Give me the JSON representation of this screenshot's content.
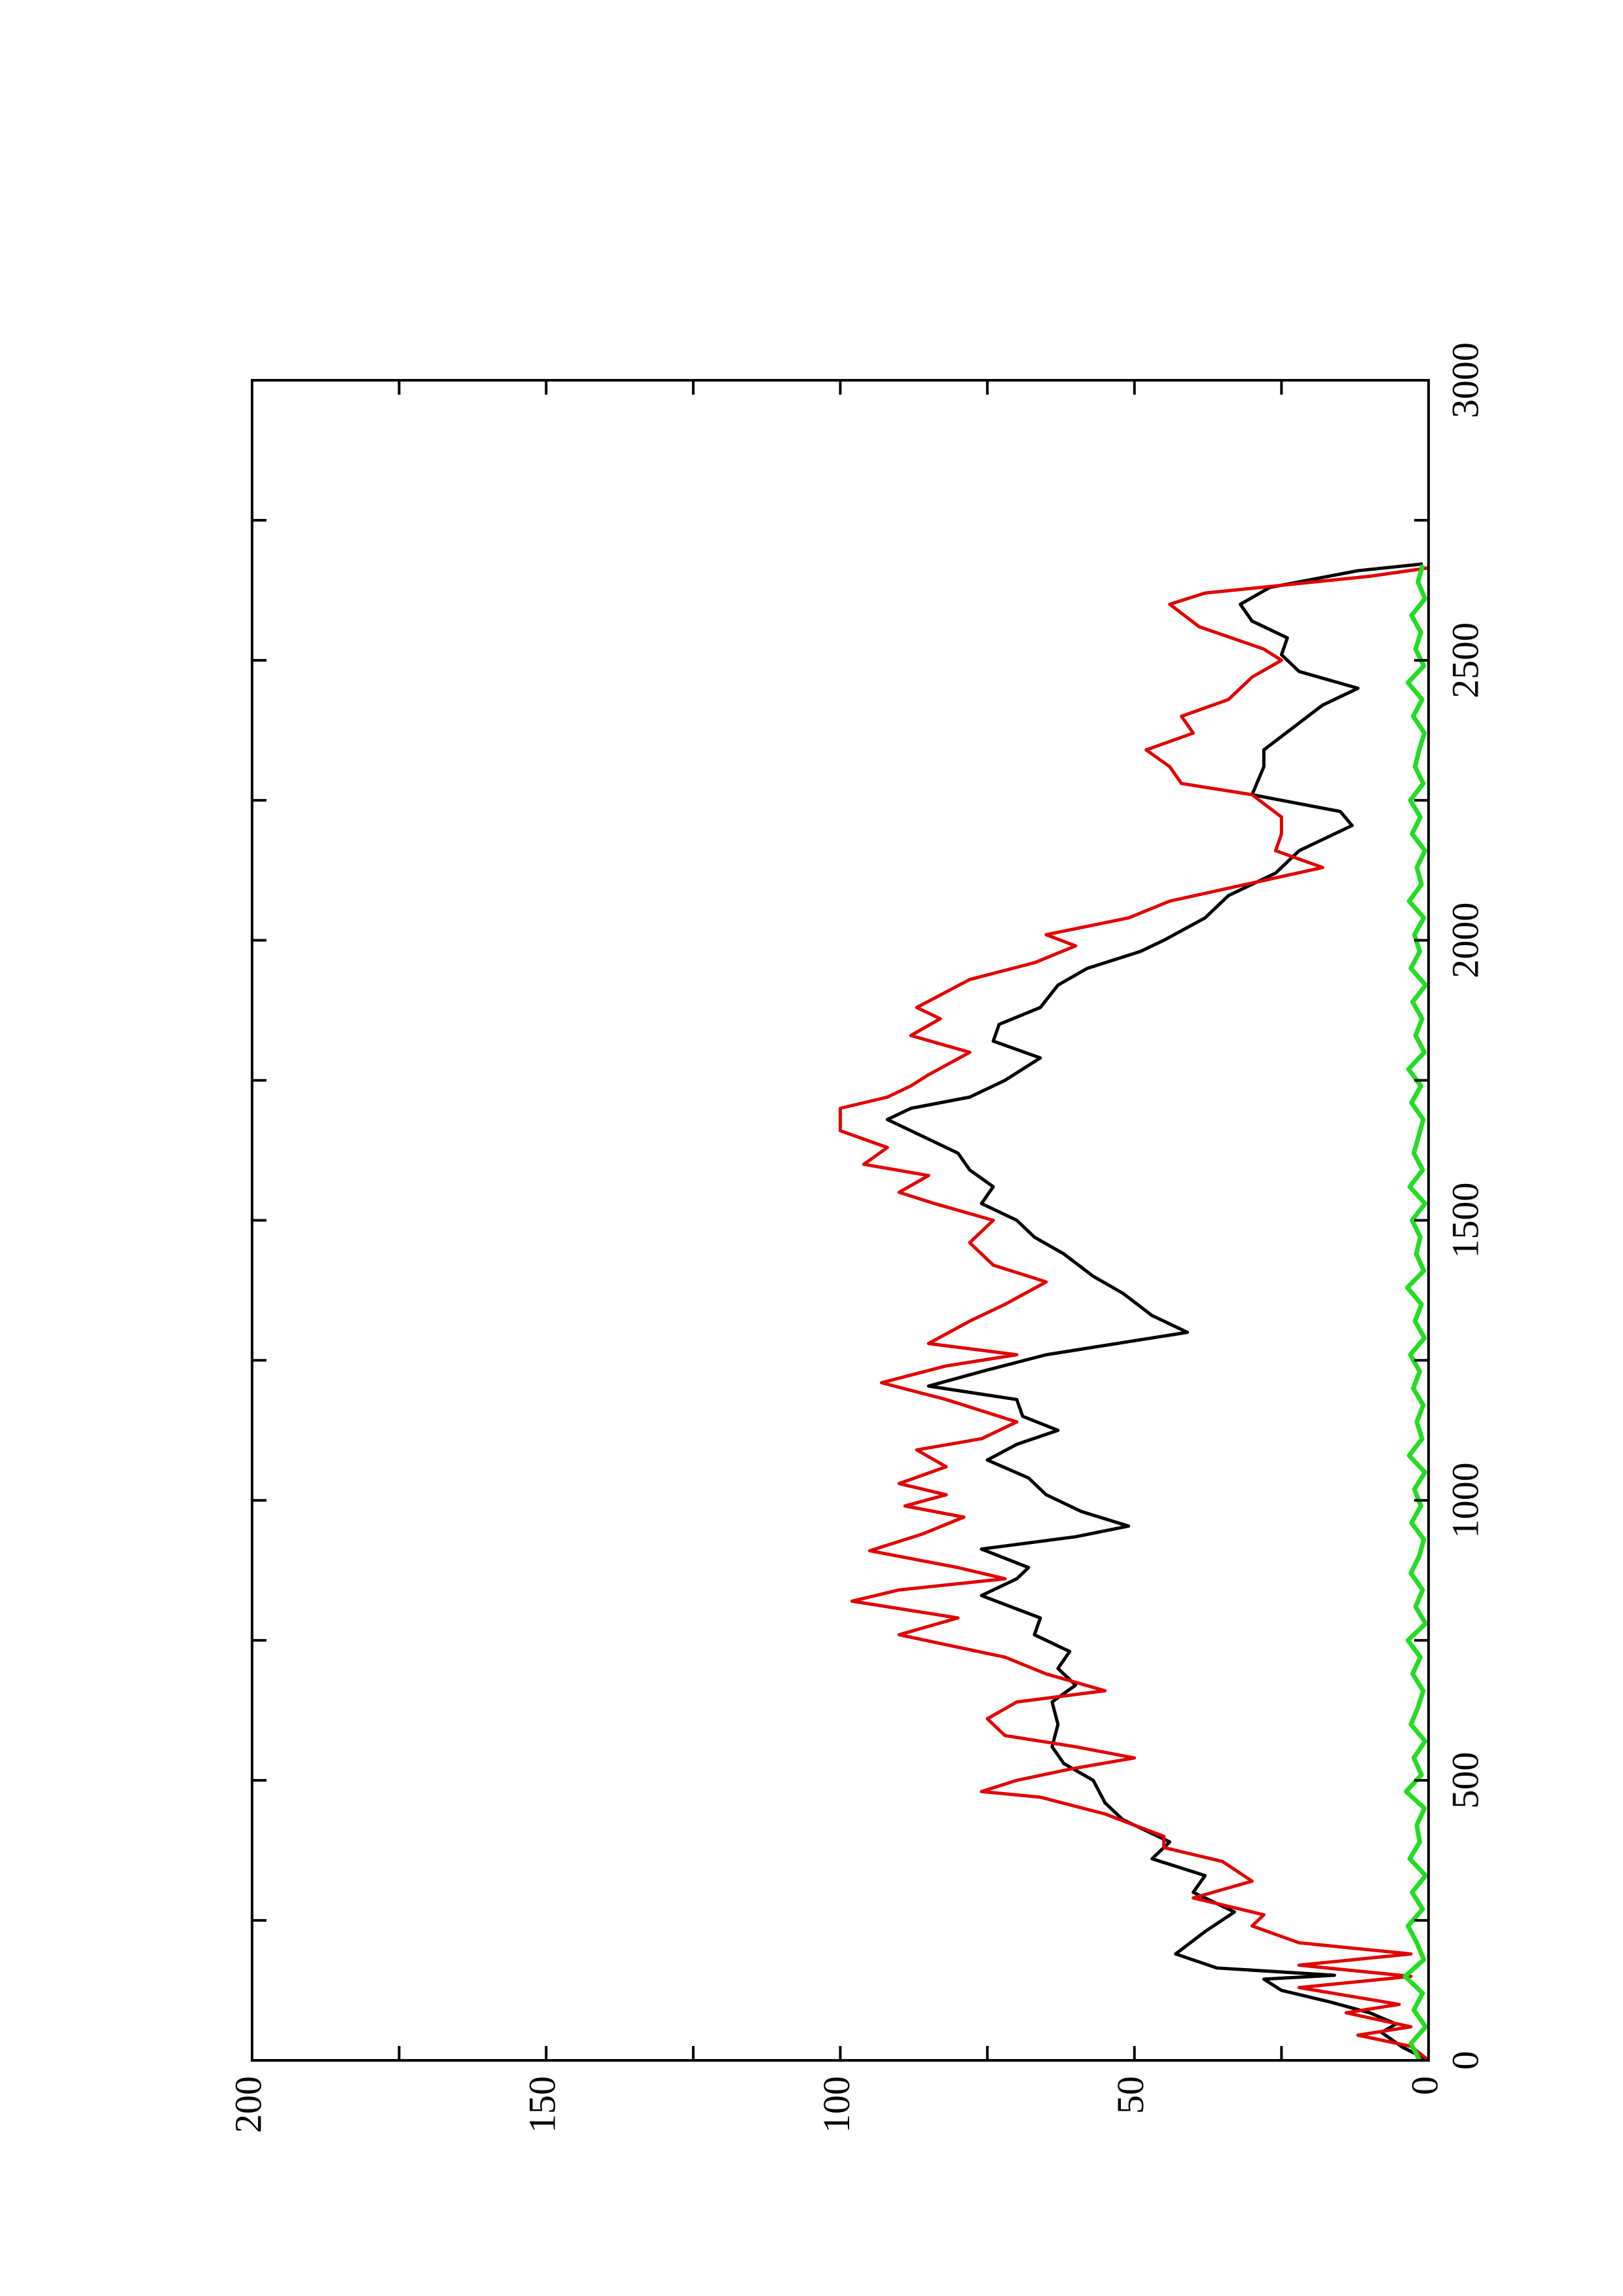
{
  "chart_data": {
    "type": "line",
    "xlim": [
      0,
      3000
    ],
    "xticks": [
      0,
      500,
      1000,
      1500,
      2000,
      2500,
      3000
    ],
    "xminorticks": [
      250,
      750,
      1250,
      1750,
      2250,
      2750
    ],
    "ylim": [
      0,
      200
    ],
    "yticks": [
      0,
      50,
      100,
      150,
      200
    ],
    "yminorticks": [
      25,
      75,
      125,
      175
    ],
    "series": [
      {
        "color": "#000000",
        "x": [
          0,
          24,
          50,
          65,
          85,
          105,
          125,
          145,
          152,
          165,
          190,
          230,
          265,
          300,
          330,
          360,
          390,
          430,
          460,
          500,
          530,
          560,
          600,
          640,
          670,
          700,
          730,
          760,
          790,
          830,
          860,
          880,
          913,
          935,
          954,
          980,
          1010,
          1040,
          1072,
          1100,
          1125,
          1150,
          1180,
          1204,
          1230,
          1260,
          1300,
          1330,
          1370,
          1400,
          1440,
          1470,
          1500,
          1530,
          1560,
          1590,
          1620,
          1650,
          1680,
          1700,
          1720,
          1750,
          1790,
          1820,
          1850,
          1880,
          1920,
          1950,
          1980,
          2000,
          2040,
          2080,
          2120,
          2160,
          2205,
          2230,
          2260,
          2310,
          2340,
          2380,
          2420,
          2450,
          2480,
          2510,
          2540,
          2570,
          2600,
          2630,
          2660,
          2672
        ],
        "values": [
          0,
          4.5,
          8,
          5.5,
          10,
          17,
          25,
          28,
          16,
          36,
          43,
          38,
          33,
          40,
          38,
          47,
          44,
          52,
          55,
          57,
          62,
          64,
          63,
          64,
          60,
          63,
          61,
          67,
          66,
          76,
          70,
          68,
          76,
          60,
          51,
          59,
          65,
          68,
          75,
          70,
          63,
          69,
          70,
          85,
          76,
          65,
          41,
          47,
          52,
          57,
          62,
          67,
          70,
          76,
          74,
          78,
          80,
          86,
          92,
          88,
          78,
          72,
          66,
          74,
          73,
          66,
          63,
          58,
          49,
          45,
          38,
          34,
          26,
          22,
          13,
          15,
          30,
          28,
          28,
          23,
          18,
          12,
          22,
          25,
          24,
          30,
          32,
          27,
          12,
          1
        ]
      },
      {
        "color": "#e00000",
        "x": [
          0,
          25,
          45,
          60,
          85,
          100,
          130,
          150,
          170,
          190,
          210,
          240,
          260,
          290,
          320,
          355,
          380,
          400,
          440,
          470,
          480,
          500,
          520,
          540,
          560,
          580,
          610,
          640,
          660,
          690,
          720,
          760,
          790,
          820,
          840,
          860,
          880,
          910,
          940,
          970,
          990,
          1010,
          1030,
          1060,
          1090,
          1110,
          1140,
          1180,
          1210,
          1240,
          1260,
          1280,
          1320,
          1350,
          1390,
          1420,
          1460,
          1500,
          1530,
          1550,
          1580,
          1600,
          1630,
          1660,
          1700,
          1720,
          1740,
          1760,
          1800,
          1830,
          1860,
          1880,
          1930,
          1960,
          1990,
          2010,
          2040,
          2070,
          2100,
          2130,
          2160,
          2190,
          2220,
          2260,
          2280,
          2310,
          2340,
          2370,
          2400,
          2430,
          2470,
          2500,
          2520,
          2560,
          2600,
          2620,
          2650,
          2665
        ],
        "values": [
          0,
          3,
          12,
          3,
          14,
          5,
          22,
          3,
          22,
          3,
          22,
          30,
          28,
          40,
          30,
          35,
          45,
          45,
          55,
          66,
          76,
          70,
          61,
          50,
          60,
          72,
          75,
          70,
          55,
          65,
          72,
          90,
          80,
          98,
          90,
          72,
          80,
          95,
          86,
          79,
          89,
          82,
          90,
          82,
          87,
          76,
          70,
          82,
          93,
          82,
          70,
          85,
          78,
          72,
          65,
          74,
          78,
          74,
          84,
          90,
          85,
          96,
          92,
          100,
          100,
          92,
          88,
          85,
          78,
          88,
          83,
          87,
          78,
          67,
          60,
          65,
          51,
          44,
          31,
          18,
          26,
          25,
          25,
          30,
          42,
          44,
          48,
          40,
          42,
          34,
          30,
          25,
          28,
          39,
          44,
          38,
          10,
          0
        ]
      },
      {
        "color": "#22dd22",
        "x": [
          0,
          30,
          60,
          90,
          120,
          150,
          180,
          210,
          240,
          270,
          300,
          330,
          360,
          390,
          420,
          450,
          480,
          510,
          540,
          570,
          600,
          630,
          660,
          690,
          720,
          750,
          780,
          810,
          840,
          870,
          900,
          930,
          960,
          990,
          1020,
          1050,
          1080,
          1110,
          1140,
          1170,
          1200,
          1230,
          1260,
          1290,
          1320,
          1350,
          1380,
          1410,
          1440,
          1470,
          1500,
          1530,
          1560,
          1590,
          1620,
          1650,
          1680,
          1710,
          1740,
          1770,
          1800,
          1830,
          1860,
          1890,
          1920,
          1950,
          1980,
          2010,
          2040,
          2070,
          2100,
          2130,
          2160,
          2190,
          2220,
          2250,
          2280,
          2310,
          2340,
          2370,
          2400,
          2430,
          2460,
          2490,
          2520,
          2550,
          2580,
          2610,
          2640,
          2670
        ],
        "values": [
          1.5,
          3,
          0.5,
          2.5,
          1,
          4,
          0.8,
          2,
          3.5,
          1,
          2.8,
          0.5,
          3.2,
          1.5,
          2,
          0.7,
          3.8,
          1.2,
          2.5,
          0.6,
          3,
          1.8,
          0.9,
          2.7,
          1.4,
          3.5,
          0.5,
          2.2,
          1,
          3,
          1.6,
          0.8,
          2.9,
          1.3,
          2.4,
          0.6,
          3.3,
          1.1,
          2,
          0.9,
          2.6,
          1.5,
          3.1,
          0.7,
          2.3,
          1.2,
          3.6,
          0.8,
          2.1,
          1.4,
          2.8,
          0.6,
          3.2,
          1,
          2.5,
          1.7,
          0.9,
          2.9,
          1.3,
          3.4,
          0.7,
          2.2,
          1.1,
          2.7,
          0.5,
          3,
          1.5,
          2.4,
          0.8,
          3.3,
          1.2,
          2,
          0.6,
          2.8,
          1.4,
          3.1,
          0.9,
          2.3,
          1.6,
          0.7,
          2.6,
          1.1,
          3.5,
          0.8,
          2.2,
          1.3,
          2.9,
          0.6,
          1.8,
          1
        ]
      }
    ]
  }
}
